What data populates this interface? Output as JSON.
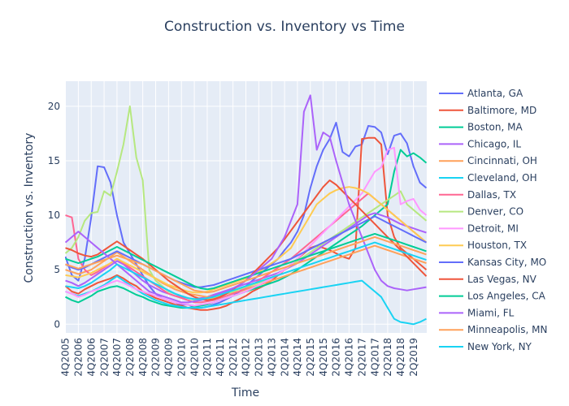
{
  "chart_data": {
    "type": "line",
    "title": "Construction vs. Inventory vs Time",
    "xlabel": "Time",
    "ylabel": "Construction vs. Inventory",
    "ylim": [
      -0.8,
      22.3
    ],
    "yticks": [
      0,
      5,
      10,
      15,
      20
    ],
    "grid": true,
    "legend_position": "right",
    "x": [
      "4Q2005",
      "1Q2006",
      "2Q2006",
      "3Q2006",
      "4Q2006",
      "1Q2007",
      "2Q2007",
      "3Q2007",
      "4Q2007",
      "1Q2008",
      "2Q2008",
      "3Q2008",
      "4Q2008",
      "1Q2009",
      "2Q2009",
      "3Q2009",
      "4Q2009",
      "1Q2010",
      "2Q2010",
      "3Q2010",
      "4Q2010",
      "1Q2011",
      "2Q2011",
      "3Q2011",
      "4Q2011",
      "1Q2012",
      "2Q2012",
      "3Q2012",
      "4Q2012",
      "1Q2013",
      "2Q2013",
      "3Q2013",
      "4Q2013",
      "1Q2014",
      "2Q2014",
      "3Q2014",
      "4Q2014",
      "1Q2015",
      "2Q2015",
      "3Q2015",
      "4Q2015",
      "1Q2016",
      "2Q2016",
      "3Q2016",
      "4Q2016",
      "1Q2017",
      "2Q2017",
      "3Q2017",
      "4Q2017",
      "1Q2018",
      "2Q2018",
      "3Q2018",
      "4Q2018",
      "1Q2019",
      "2Q2019",
      "3Q2019",
      "4Q2019"
    ],
    "xtick_labels": [
      "4Q2005",
      "2Q2006",
      "4Q2006",
      "2Q2007",
      "4Q2007",
      "2Q2008",
      "4Q2008",
      "2Q2009",
      "4Q2009",
      "2Q2010",
      "4Q2010",
      "2Q2011",
      "4Q2011",
      "2Q2012",
      "4Q2012",
      "2Q2013",
      "4Q2013",
      "2Q2014",
      "4Q2014",
      "2Q2015",
      "4Q2015",
      "2Q2016",
      "4Q2016",
      "2Q2017",
      "4Q2017",
      "2Q2018",
      "4Q2018",
      "2Q2019"
    ],
    "series": [
      {
        "name": "Atlanta, GA",
        "color": "#636efa",
        "values": [
          6.2,
          4.5,
          4.0,
          6.0,
          9.8,
          14.5,
          14.4,
          13.0,
          10.0,
          7.5,
          6.5,
          5.5,
          4.5,
          3.5,
          2.8,
          2.4,
          2.2,
          2.0,
          1.8,
          1.8,
          1.6,
          1.5,
          1.6,
          1.8,
          2.0,
          2.3,
          2.6,
          3.0,
          3.5,
          4.0,
          4.5,
          5.0,
          5.5,
          6.0,
          6.8,
          7.5,
          8.5,
          10.0,
          12.5,
          14.5,
          16.0,
          17.0,
          18.5,
          15.8,
          15.4,
          16.3,
          16.5,
          18.2,
          18.1,
          17.6,
          15.6,
          17.3,
          17.5,
          16.6,
          14.5,
          13.0,
          12.5
        ]
      },
      {
        "name": "Baltimore, MD",
        "color": "#EF553B",
        "values": [
          3.5,
          3.0,
          2.8,
          3.2,
          3.5,
          3.8,
          4.0,
          4.2,
          4.5,
          4.2,
          3.8,
          3.5,
          3.0,
          2.7,
          2.4,
          2.2,
          2.0,
          1.8,
          1.7,
          1.5,
          1.4,
          1.3,
          1.3,
          1.4,
          1.5,
          1.7,
          2.0,
          2.3,
          2.6,
          3.0,
          3.3,
          3.6,
          4.0,
          4.5,
          5.0,
          5.5,
          6.0,
          6.5,
          7.0,
          7.2,
          7.0,
          6.8,
          6.5,
          6.2,
          6.0,
          7.0,
          17.0,
          17.1,
          17.1,
          16.5,
          10.0,
          8.0,
          7.0,
          6.5,
          6.0,
          5.5,
          5.0
        ]
      },
      {
        "name": "Boston, MA",
        "color": "#00cc96",
        "values": [
          2.5,
          2.2,
          2.0,
          2.3,
          2.6,
          3.0,
          3.2,
          3.4,
          3.5,
          3.3,
          3.0,
          2.7,
          2.5,
          2.2,
          2.0,
          1.8,
          1.7,
          1.6,
          1.5,
          1.5,
          1.6,
          1.7,
          1.8,
          2.0,
          2.2,
          2.4,
          2.6,
          2.8,
          3.0,
          3.2,
          3.4,
          3.6,
          3.8,
          4.0,
          4.3,
          4.6,
          5.0,
          5.4,
          5.8,
          6.2,
          6.6,
          7.0,
          7.4,
          7.8,
          8.2,
          8.6,
          9.0,
          9.5,
          10.0,
          10.5,
          11.0,
          14.0,
          16.0,
          15.4,
          15.7,
          15.3,
          14.8
        ]
      },
      {
        "name": "Chicago, IL",
        "color": "#ab63fa",
        "values": [
          4.0,
          3.8,
          3.5,
          3.8,
          4.2,
          4.6,
          5.0,
          5.4,
          5.8,
          5.5,
          5.0,
          4.5,
          4.0,
          3.6,
          3.3,
          3.0,
          2.8,
          2.6,
          2.5,
          2.4,
          2.3,
          2.4,
          2.5,
          2.7,
          2.9,
          3.1,
          3.3,
          3.5,
          3.7,
          3.9,
          4.1,
          4.3,
          4.5,
          4.7,
          5.0,
          5.3,
          5.6,
          6.0,
          6.4,
          6.8,
          7.2,
          7.6,
          8.0,
          8.4,
          8.8,
          9.2,
          9.6,
          10.0,
          10.2,
          10.0,
          9.8,
          9.5,
          9.2,
          9.0,
          8.8,
          8.6,
          8.4
        ]
      },
      {
        "name": "Cincinnati, OH",
        "color": "#FFA15A",
        "values": [
          5.0,
          4.8,
          4.6,
          4.8,
          5.0,
          5.4,
          5.8,
          6.2,
          6.6,
          6.2,
          5.8,
          5.4,
          5.0,
          4.6,
          4.2,
          3.8,
          3.5,
          3.2,
          3.0,
          2.8,
          2.7,
          2.6,
          2.5,
          2.6,
          2.7,
          2.8,
          2.9,
          3.0,
          3.2,
          3.4,
          3.6,
          3.8,
          4.0,
          4.2,
          4.4,
          4.6,
          4.8,
          5.0,
          5.2,
          5.4,
          5.6,
          5.8,
          6.0,
          6.2,
          6.4,
          6.6,
          6.8,
          7.0,
          7.2,
          7.0,
          6.8,
          6.6,
          6.4,
          6.2,
          6.0,
          5.8,
          5.6
        ]
      },
      {
        "name": "Cleveland, OH",
        "color": "#19d3f3",
        "values": [
          3.0,
          2.8,
          2.6,
          2.8,
          3.0,
          3.3,
          3.6,
          4.0,
          4.4,
          4.0,
          3.6,
          3.2,
          2.8,
          2.5,
          2.2,
          2.0,
          1.8,
          1.7,
          1.6,
          1.5,
          1.5,
          1.5,
          1.6,
          1.7,
          1.8,
          1.9,
          2.0,
          2.1,
          2.2,
          2.3,
          2.4,
          2.5,
          2.6,
          2.7,
          2.8,
          2.9,
          3.0,
          3.1,
          3.2,
          3.3,
          3.4,
          3.5,
          3.6,
          3.7,
          3.8,
          3.9,
          4.0,
          3.5,
          3.0,
          2.5,
          1.5,
          0.5,
          0.2,
          0.1,
          0.0,
          0.2,
          0.5
        ]
      },
      {
        "name": "Dallas, TX",
        "color": "#FF6692",
        "values": [
          10.0,
          9.8,
          6.0,
          5.0,
          4.5,
          4.8,
          5.2,
          5.6,
          6.0,
          5.6,
          5.2,
          4.8,
          4.4,
          4.0,
          3.6,
          3.2,
          2.8,
          2.6,
          2.4,
          2.2,
          2.0,
          2.0,
          2.1,
          2.2,
          2.4,
          2.6,
          2.8,
          3.0,
          3.3,
          3.6,
          4.0,
          4.4,
          4.8,
          5.2,
          5.6,
          6.0,
          6.5,
          7.0,
          7.5,
          8.0,
          8.5,
          9.0,
          9.5,
          10.0,
          10.5,
          11.0,
          11.5,
          12.0,
          11.5,
          11.0,
          10.5,
          10.0,
          9.5,
          9.0,
          8.5,
          8.0,
          7.5
        ]
      },
      {
        "name": "Denver, CO",
        "color": "#B6E880",
        "values": [
          6.5,
          7.0,
          8.0,
          9.5,
          10.2,
          10.3,
          12.2,
          11.8,
          14.0,
          16.5,
          20.0,
          15.3,
          13.2,
          5.0,
          4.0,
          3.5,
          3.0,
          2.8,
          2.6,
          2.4,
          2.2,
          2.2,
          2.3,
          2.4,
          2.6,
          2.8,
          3.0,
          3.2,
          3.4,
          3.6,
          3.8,
          4.0,
          4.3,
          4.6,
          5.0,
          5.4,
          5.8,
          6.2,
          6.6,
          7.0,
          7.4,
          7.8,
          8.2,
          8.6,
          9.0,
          9.4,
          9.8,
          10.2,
          10.6,
          11.0,
          11.4,
          11.8,
          12.2,
          11.0,
          10.5,
          10.0,
          9.5
        ]
      },
      {
        "name": "Detroit, MI",
        "color": "#FF97FF",
        "values": [
          3.0,
          2.8,
          2.5,
          2.7,
          3.0,
          3.2,
          3.5,
          3.8,
          4.0,
          3.8,
          3.5,
          3.2,
          3.0,
          2.8,
          2.6,
          2.4,
          2.2,
          2.0,
          1.9,
          1.8,
          1.7,
          1.8,
          1.9,
          2.0,
          2.2,
          2.4,
          2.6,
          2.8,
          3.0,
          3.3,
          3.6,
          3.9,
          4.2,
          4.6,
          5.0,
          5.5,
          6.0,
          6.6,
          7.2,
          7.8,
          8.4,
          9.0,
          9.6,
          10.2,
          10.8,
          11.4,
          12.0,
          13.0,
          14.0,
          14.4,
          16.0,
          16.2,
          11.0,
          11.3,
          11.5,
          10.5,
          10.0
        ]
      },
      {
        "name": "Houston, TX",
        "color": "#FECB52",
        "values": [
          4.5,
          4.4,
          4.3,
          4.5,
          4.7,
          5.0,
          5.3,
          5.6,
          6.0,
          5.7,
          5.4,
          5.1,
          4.8,
          4.5,
          4.2,
          3.9,
          3.6,
          3.4,
          3.2,
          3.0,
          2.9,
          2.9,
          3.0,
          3.2,
          3.4,
          3.6,
          3.8,
          4.0,
          4.2,
          4.5,
          4.8,
          5.2,
          5.6,
          6.0,
          6.5,
          7.0,
          8.0,
          9.0,
          10.0,
          11.0,
          11.5,
          12.0,
          12.3,
          12.5,
          12.6,
          12.5,
          12.3,
          12.0,
          11.5,
          11.0,
          10.5,
          10.0,
          9.5,
          9.0,
          8.5,
          8.0,
          7.5
        ]
      },
      {
        "name": "Kansas City, MO",
        "color": "#636efa",
        "values": [
          5.5,
          5.2,
          5.0,
          5.2,
          5.5,
          5.8,
          6.1,
          6.4,
          6.7,
          6.4,
          6.1,
          5.8,
          5.5,
          5.2,
          4.9,
          4.6,
          4.3,
          4.0,
          3.8,
          3.6,
          3.4,
          3.4,
          3.5,
          3.6,
          3.8,
          4.0,
          4.2,
          4.4,
          4.6,
          4.8,
          5.0,
          5.2,
          5.4,
          5.6,
          5.8,
          6.0,
          6.3,
          6.6,
          6.9,
          7.2,
          7.5,
          7.8,
          8.1,
          8.4,
          8.7,
          9.0,
          9.3,
          9.6,
          9.9,
          9.6,
          9.3,
          9.0,
          8.7,
          8.4,
          8.1,
          7.8,
          7.5
        ]
      },
      {
        "name": "Las Vegas, NV",
        "color": "#EF553B",
        "values": [
          7.0,
          6.8,
          6.5,
          6.3,
          6.2,
          6.4,
          6.8,
          7.2,
          7.6,
          7.2,
          6.8,
          6.4,
          6.0,
          5.5,
          5.0,
          4.5,
          4.0,
          3.6,
          3.2,
          2.8,
          2.5,
          2.3,
          2.2,
          2.3,
          2.5,
          2.8,
          3.2,
          3.6,
          4.0,
          4.6,
          5.2,
          5.8,
          6.4,
          7.0,
          7.8,
          8.6,
          9.4,
          10.2,
          11.0,
          11.8,
          12.6,
          13.2,
          12.8,
          12.2,
          11.6,
          11.0,
          10.4,
          9.8,
          9.2,
          8.6,
          8.0,
          7.4,
          6.8,
          6.2,
          5.6,
          5.0,
          4.4
        ]
      },
      {
        "name": "Los Angeles, CA",
        "color": "#00cc96",
        "values": [
          6.0,
          5.8,
          5.6,
          5.8,
          6.0,
          6.2,
          6.5,
          6.8,
          7.1,
          6.8,
          6.5,
          6.2,
          5.9,
          5.6,
          5.3,
          5.0,
          4.7,
          4.4,
          4.1,
          3.8,
          3.5,
          3.3,
          3.2,
          3.3,
          3.5,
          3.7,
          3.9,
          4.1,
          4.3,
          4.5,
          4.7,
          4.9,
          5.1,
          5.3,
          5.5,
          5.7,
          5.9,
          6.1,
          6.3,
          6.5,
          6.7,
          6.9,
          7.1,
          7.3,
          7.5,
          7.7,
          7.9,
          8.1,
          8.3,
          8.1,
          7.9,
          7.7,
          7.5,
          7.3,
          7.1,
          6.9,
          6.7
        ]
      },
      {
        "name": "Miami, FL",
        "color": "#ab63fa",
        "values": [
          7.5,
          8.0,
          8.5,
          8.0,
          7.5,
          7.0,
          6.5,
          6.0,
          5.5,
          5.0,
          4.5,
          4.0,
          3.5,
          3.0,
          2.8,
          2.6,
          2.4,
          2.2,
          2.0,
          2.0,
          2.1,
          2.2,
          2.4,
          2.6,
          2.8,
          3.0,
          3.3,
          3.6,
          4.0,
          4.5,
          5.0,
          5.5,
          6.0,
          7.0,
          8.0,
          9.5,
          11.0,
          19.5,
          21.0,
          16.0,
          17.6,
          17.2,
          15.0,
          13.0,
          11.0,
          9.5,
          8.0,
          6.5,
          5.0,
          4.0,
          3.5,
          3.3,
          3.2,
          3.1,
          3.2,
          3.3,
          3.4
        ]
      },
      {
        "name": "Minneapolis, MN",
        "color": "#FFA15A",
        "values": [
          5.5,
          5.3,
          5.1,
          5.3,
          5.5,
          5.7,
          5.9,
          6.1,
          6.3,
          6.1,
          5.9,
          5.7,
          5.5,
          5.2,
          4.9,
          4.6,
          4.3,
          4.0,
          3.7,
          3.4,
          3.1,
          3.0,
          2.9,
          3.0,
          3.2,
          3.4,
          3.6,
          3.8,
          4.0,
          4.2,
          4.4,
          4.6,
          4.8,
          5.0,
          5.2,
          5.4,
          5.6,
          5.8,
          6.0,
          6.2,
          6.4,
          6.6,
          6.8,
          7.0,
          7.2,
          7.4,
          7.6,
          7.8,
          8.0,
          7.8,
          7.6,
          7.4,
          7.2,
          7.0,
          6.8,
          6.6,
          6.4
        ]
      },
      {
        "name": "New York, NY",
        "color": "#19d3f3",
        "values": [
          3.5,
          3.4,
          3.3,
          3.5,
          3.8,
          4.2,
          4.6,
          5.0,
          5.5,
          5.2,
          4.9,
          4.6,
          4.3,
          4.0,
          3.7,
          3.4,
          3.1,
          2.8,
          2.6,
          2.4,
          2.3,
          2.3,
          2.4,
          2.5,
          2.7,
          2.9,
          3.1,
          3.3,
          3.5,
          3.7,
          3.9,
          4.1,
          4.3,
          4.5,
          4.7,
          4.9,
          5.1,
          5.3,
          5.5,
          5.7,
          5.9,
          6.1,
          6.3,
          6.5,
          6.7,
          6.9,
          7.1,
          7.3,
          7.5,
          7.3,
          7.1,
          6.9,
          6.7,
          6.5,
          6.3,
          6.1,
          5.9
        ]
      }
    ]
  }
}
